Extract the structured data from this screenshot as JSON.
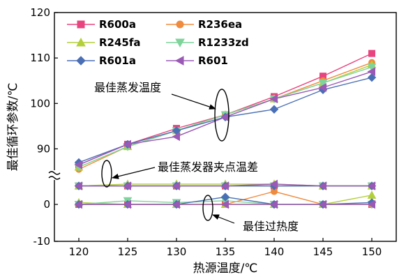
{
  "chart_data": {
    "type": "line",
    "x": [
      120,
      125,
      130,
      135,
      140,
      145,
      150
    ],
    "x_ticks": [
      "120",
      "125",
      "130",
      "135",
      "140",
      "145",
      "150"
    ],
    "xlabel": "热源温度/℃",
    "ylabel": "最佳循环参数/℃",
    "upper_axis": {
      "range": [
        85,
        120
      ],
      "ticks": [
        "90",
        "100",
        "110",
        "120"
      ]
    },
    "lower_axis": {
      "range": [
        -10,
        7
      ],
      "ticks": [
        "-10",
        "0"
      ]
    },
    "broken_axis": true,
    "legend_placement": "top-left",
    "series": [
      {
        "name": "R600a",
        "color": "#e8447f",
        "marker": "square",
        "evap": [
          86.5,
          91,
          94.5,
          97.5,
          101.5,
          106,
          111
        ],
        "pinch": [
          5,
          5,
          5,
          5,
          5,
          5,
          5
        ],
        "superheat": [
          0,
          0,
          0,
          0,
          0,
          0,
          0
        ]
      },
      {
        "name": "R236ea",
        "color": "#f08a3c",
        "marker": "circle",
        "evap": [
          85.5,
          90.5,
          94,
          97.5,
          101,
          105,
          109
        ],
        "pinch": [
          5,
          5,
          5,
          5,
          5,
          5,
          5
        ],
        "superheat": [
          0,
          0,
          0,
          0,
          3.5,
          0,
          0
        ]
      },
      {
        "name": "R245fa",
        "color": "#b3cf3a",
        "marker": "triangle-up",
        "evap": [
          86,
          90.5,
          94,
          97.5,
          101,
          104.5,
          108.5
        ],
        "pinch": [
          5,
          5.5,
          5.5,
          5.5,
          5.5,
          5,
          5
        ],
        "superheat": [
          0.5,
          0,
          0,
          0,
          0,
          0,
          2.5
        ]
      },
      {
        "name": "R1233zd",
        "color": "#7fd49b",
        "marker": "triangle-down",
        "evap": [
          86,
          90.5,
          94,
          97.5,
          101,
          104.5,
          108
        ],
        "pinch": [
          5,
          5,
          5,
          5,
          5,
          5,
          5
        ],
        "superheat": [
          0,
          1,
          0.5,
          1,
          0,
          0,
          0
        ]
      },
      {
        "name": "R601a",
        "color": "#4a6fb5",
        "marker": "diamond",
        "evap": [
          87,
          91,
          94,
          97,
          98.7,
          103,
          105.7
        ],
        "pinch": [
          5,
          5,
          5,
          5,
          5,
          5,
          5
        ],
        "superheat": [
          0,
          0,
          0,
          2,
          0,
          0,
          0.5
        ]
      },
      {
        "name": "R601",
        "color": "#9b59b6",
        "marker": "triangle-left",
        "evap": [
          86.5,
          91,
          92.7,
          97,
          101,
          103.5,
          107
        ],
        "pinch": [
          5,
          5,
          5,
          5,
          5.5,
          5,
          5
        ],
        "superheat": [
          0,
          0,
          0,
          0,
          0,
          0,
          0
        ]
      }
    ],
    "annotations": [
      {
        "text": "最佳蒸发温度"
      },
      {
        "text": "最佳蒸发器夹点温差"
      },
      {
        "text": "最佳过热度"
      }
    ]
  }
}
